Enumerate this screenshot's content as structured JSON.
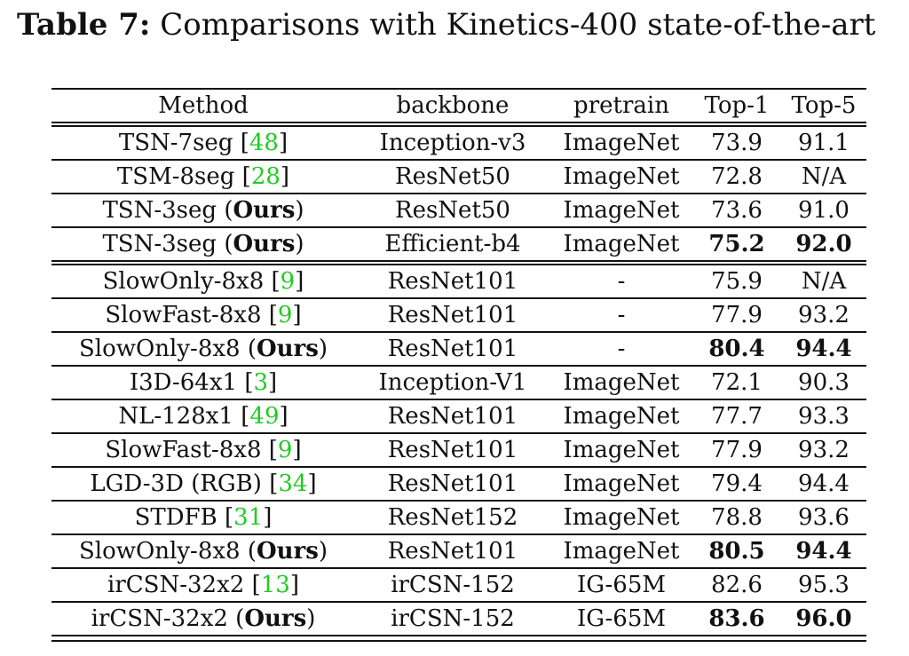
{
  "caption": {
    "label": "Table 7:",
    "text": " Comparisons with Kinetics-400 state-of-the-art"
  },
  "header": [
    "Method",
    "backbone",
    "pretrain",
    "Top-1",
    "Top-5"
  ],
  "groups": [
    {
      "rows": [
        {
          "method": "TSN-7seg ",
          "open": "[",
          "cite": "48",
          "close": "]",
          "ours": false,
          "backbone": "Inception-v3",
          "pretrain": "ImageNet",
          "top1": "73.9",
          "top5": "91.1",
          "bold": false
        },
        {
          "method": "TSM-8seg ",
          "open": "[",
          "cite": "28",
          "close": "]",
          "ours": false,
          "backbone": "ResNet50",
          "pretrain": "ImageNet",
          "top1": "72.8",
          "top5": "N/A",
          "bold": false
        },
        {
          "method": "TSN-3seg ",
          "ours": true,
          "backbone": "ResNet50",
          "pretrain": "ImageNet",
          "top1": "73.6",
          "top5": "91.0",
          "bold": false
        },
        {
          "method": "TSN-3seg ",
          "ours": true,
          "backbone": "Efficient-b4",
          "pretrain": "ImageNet",
          "top1": "75.2",
          "top5": "92.0",
          "bold": true
        }
      ]
    },
    {
      "rows": [
        {
          "method": "SlowOnly-8x8 ",
          "open": "[",
          "cite": "9",
          "close": "]",
          "ours": false,
          "backbone": "ResNet101",
          "pretrain": "-",
          "top1": "75.9",
          "top5": "N/A",
          "bold": false
        },
        {
          "method": "SlowFast-8x8 ",
          "open": "[",
          "cite": "9",
          "close": "]",
          "ours": false,
          "backbone": "ResNet101",
          "pretrain": "-",
          "top1": "77.9",
          "top5": "93.2",
          "bold": false
        },
        {
          "method": "SlowOnly-8x8 ",
          "ours": true,
          "backbone": "ResNet101",
          "pretrain": "-",
          "top1": "80.4",
          "top5": "94.4",
          "bold": true
        },
        {
          "method": "I3D-64x1 ",
          "open": "[",
          "cite": "3",
          "close": "]",
          "ours": false,
          "backbone": "Inception-V1",
          "pretrain": "ImageNet",
          "top1": "72.1",
          "top5": "90.3",
          "bold": false
        },
        {
          "method": "NL-128x1 ",
          "open": "[",
          "cite": "49",
          "close": "]",
          "ours": false,
          "backbone": "ResNet101",
          "pretrain": "ImageNet",
          "top1": "77.7",
          "top5": "93.3",
          "bold": false
        },
        {
          "method": "SlowFast-8x8 ",
          "open": "[",
          "cite": "9",
          "close": "]",
          "ours": false,
          "backbone": "ResNet101",
          "pretrain": "ImageNet",
          "top1": "77.9",
          "top5": "93.2",
          "bold": false
        },
        {
          "method": "LGD-3D (RGB) ",
          "open": "[",
          "cite": "34",
          "close": "]",
          "ours": false,
          "backbone": "ResNet101",
          "pretrain": "ImageNet",
          "top1": "79.4",
          "top5": "94.4",
          "bold": false
        },
        {
          "method": "STDFB ",
          "open": "[",
          "cite": "31",
          "close": "]",
          "ours": false,
          "backbone": "ResNet152",
          "pretrain": "ImageNet",
          "top1": "78.8",
          "top5": "93.6",
          "bold": false
        },
        {
          "method": "SlowOnly-8x8 ",
          "ours": true,
          "backbone": "ResNet101",
          "pretrain": "ImageNet",
          "top1": "80.5",
          "top5": "94.4",
          "bold": true
        },
        {
          "method": "irCSN-32x2 ",
          "open": "[",
          "cite": "13",
          "close": "]",
          "ours": false,
          "backbone": "irCSN-152",
          "pretrain": "IG-65M",
          "top1": "82.6",
          "top5": "95.3",
          "bold": false
        },
        {
          "method": "irCSN-32x2 ",
          "ours": true,
          "backbone": "irCSN-152",
          "pretrain": "IG-65M",
          "top1": "83.6",
          "top5": "96.0",
          "bold": true
        }
      ]
    }
  ],
  "ours_open": "(",
  "ours_word": "Ours",
  "ours_close": ")"
}
